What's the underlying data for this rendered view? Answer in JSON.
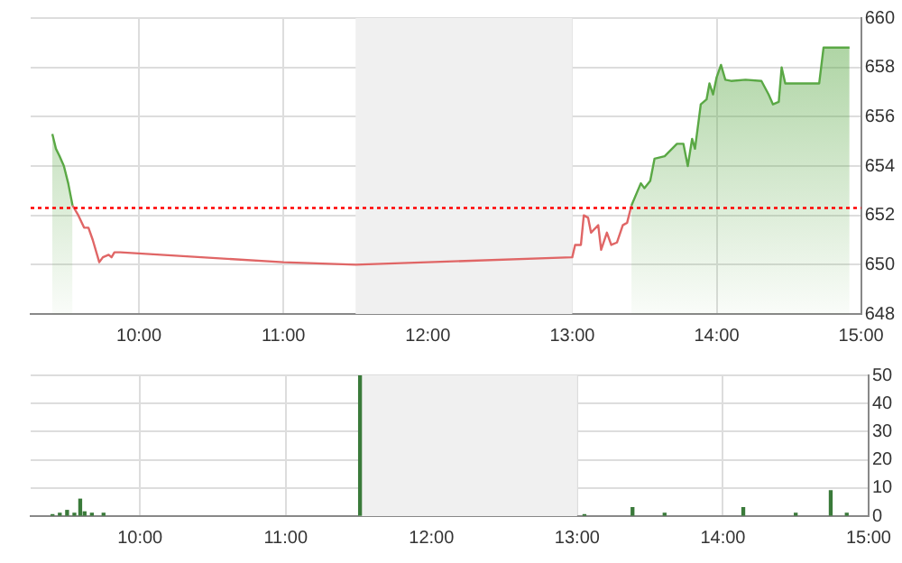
{
  "chart_data": [
    {
      "type": "area",
      "xlim": [
        9.25,
        15
      ],
      "xticks": [
        {
          "value": 10,
          "label": "10:00"
        },
        {
          "value": 11,
          "label": "11:00"
        },
        {
          "value": 12,
          "label": "12:00"
        },
        {
          "value": 13,
          "label": "13:00"
        },
        {
          "value": 14,
          "label": "14:00"
        },
        {
          "value": 15,
          "label": "15:00"
        }
      ],
      "ylim": [
        648,
        660
      ],
      "yticks": [
        648,
        650,
        652,
        654,
        656,
        658,
        660
      ],
      "grid": true,
      "legend": false,
      "series": [
        {
          "color": "#5aa845",
          "x": [
            9.4,
            9.425,
            9.45,
            9.48,
            9.51,
            9.54,
            11,
            13.41,
            13.475,
            13.5,
            13.54,
            13.57,
            13.64,
            13.725,
            13.77,
            13.8,
            13.83,
            13.85,
            13.89,
            13.93,
            13.95,
            13.975,
            14.0,
            14.03,
            14.06,
            14.1,
            14.2,
            14.31,
            14.36,
            14.39,
            14.43,
            14.45,
            14.475,
            14.71,
            14.74,
            14.92
          ],
          "values": [
            655.3,
            654.7,
            654.4,
            654.0,
            653.3,
            652.4,
            null,
            652.4,
            653.3,
            653.1,
            653.4,
            654.3,
            654.4,
            654.9,
            654.9,
            654.0,
            655.1,
            654.7,
            656.5,
            656.7,
            657.35,
            656.9,
            657.6,
            658.1,
            657.5,
            657.45,
            657.5,
            657.45,
            656.9,
            656.5,
            656.6,
            658.0,
            657.35,
            657.35,
            658.8,
            658.8
          ]
        },
        {
          "type": "line",
          "color": "#e06666",
          "x": [
            9.54,
            9.58,
            9.62,
            9.65,
            9.68,
            9.725,
            9.75,
            9.79,
            9.81,
            9.83,
            9.87,
            11.0,
            11.5,
            13.0,
            13.02,
            13.06,
            13.08,
            13.11,
            13.13,
            13.18,
            13.2,
            13.24,
            13.27,
            13.31,
            13.35,
            13.38,
            13.41
          ],
          "values": [
            652.4,
            652.0,
            651.5,
            651.5,
            651.0,
            650.1,
            650.3,
            650.4,
            650.3,
            650.5,
            650.5,
            650.1,
            650.0,
            650.3,
            650.8,
            650.8,
            652.0,
            651.9,
            651.3,
            651.6,
            650.6,
            651.3,
            650.8,
            650.9,
            651.6,
            651.7,
            652.4
          ]
        }
      ],
      "ref_lines": [
        {
          "axis": "y",
          "value": 652.3,
          "color": "#ff0000",
          "line_style": "dotted"
        }
      ],
      "bands": [
        {
          "axis": "x",
          "from": 11.5,
          "to": 13,
          "color": "#f0f0f0"
        }
      ]
    },
    {
      "type": "bar",
      "xlim": [
        9.25,
        15
      ],
      "xticks": [
        {
          "value": 10,
          "label": "10:00"
        },
        {
          "value": 11,
          "label": "11:00"
        },
        {
          "value": 12,
          "label": "12:00"
        },
        {
          "value": 13,
          "label": "13:00"
        },
        {
          "value": 14,
          "label": "14:00"
        },
        {
          "value": 15,
          "label": "15:00"
        }
      ],
      "ylim": [
        0,
        50
      ],
      "yticks": [
        0,
        10,
        20,
        30,
        40,
        50
      ],
      "grid": true,
      "legend": false,
      "series": [
        {
          "color": "#3a7a3a",
          "x": [
            9.4,
            9.45,
            9.5,
            9.55,
            9.59,
            9.62,
            9.67,
            9.75,
            11.51,
            13.05,
            13.38,
            13.6,
            14.14,
            14.5,
            14.74,
            14.85
          ],
          "values": [
            0.5,
            1,
            2,
            1,
            6,
            1.5,
            1,
            1,
            50,
            0.5,
            3,
            1,
            3,
            1,
            9,
            1
          ]
        }
      ],
      "bands": [
        {
          "axis": "x",
          "from": 11.5,
          "to": 13,
          "color": "#f0f0f0"
        }
      ]
    }
  ]
}
